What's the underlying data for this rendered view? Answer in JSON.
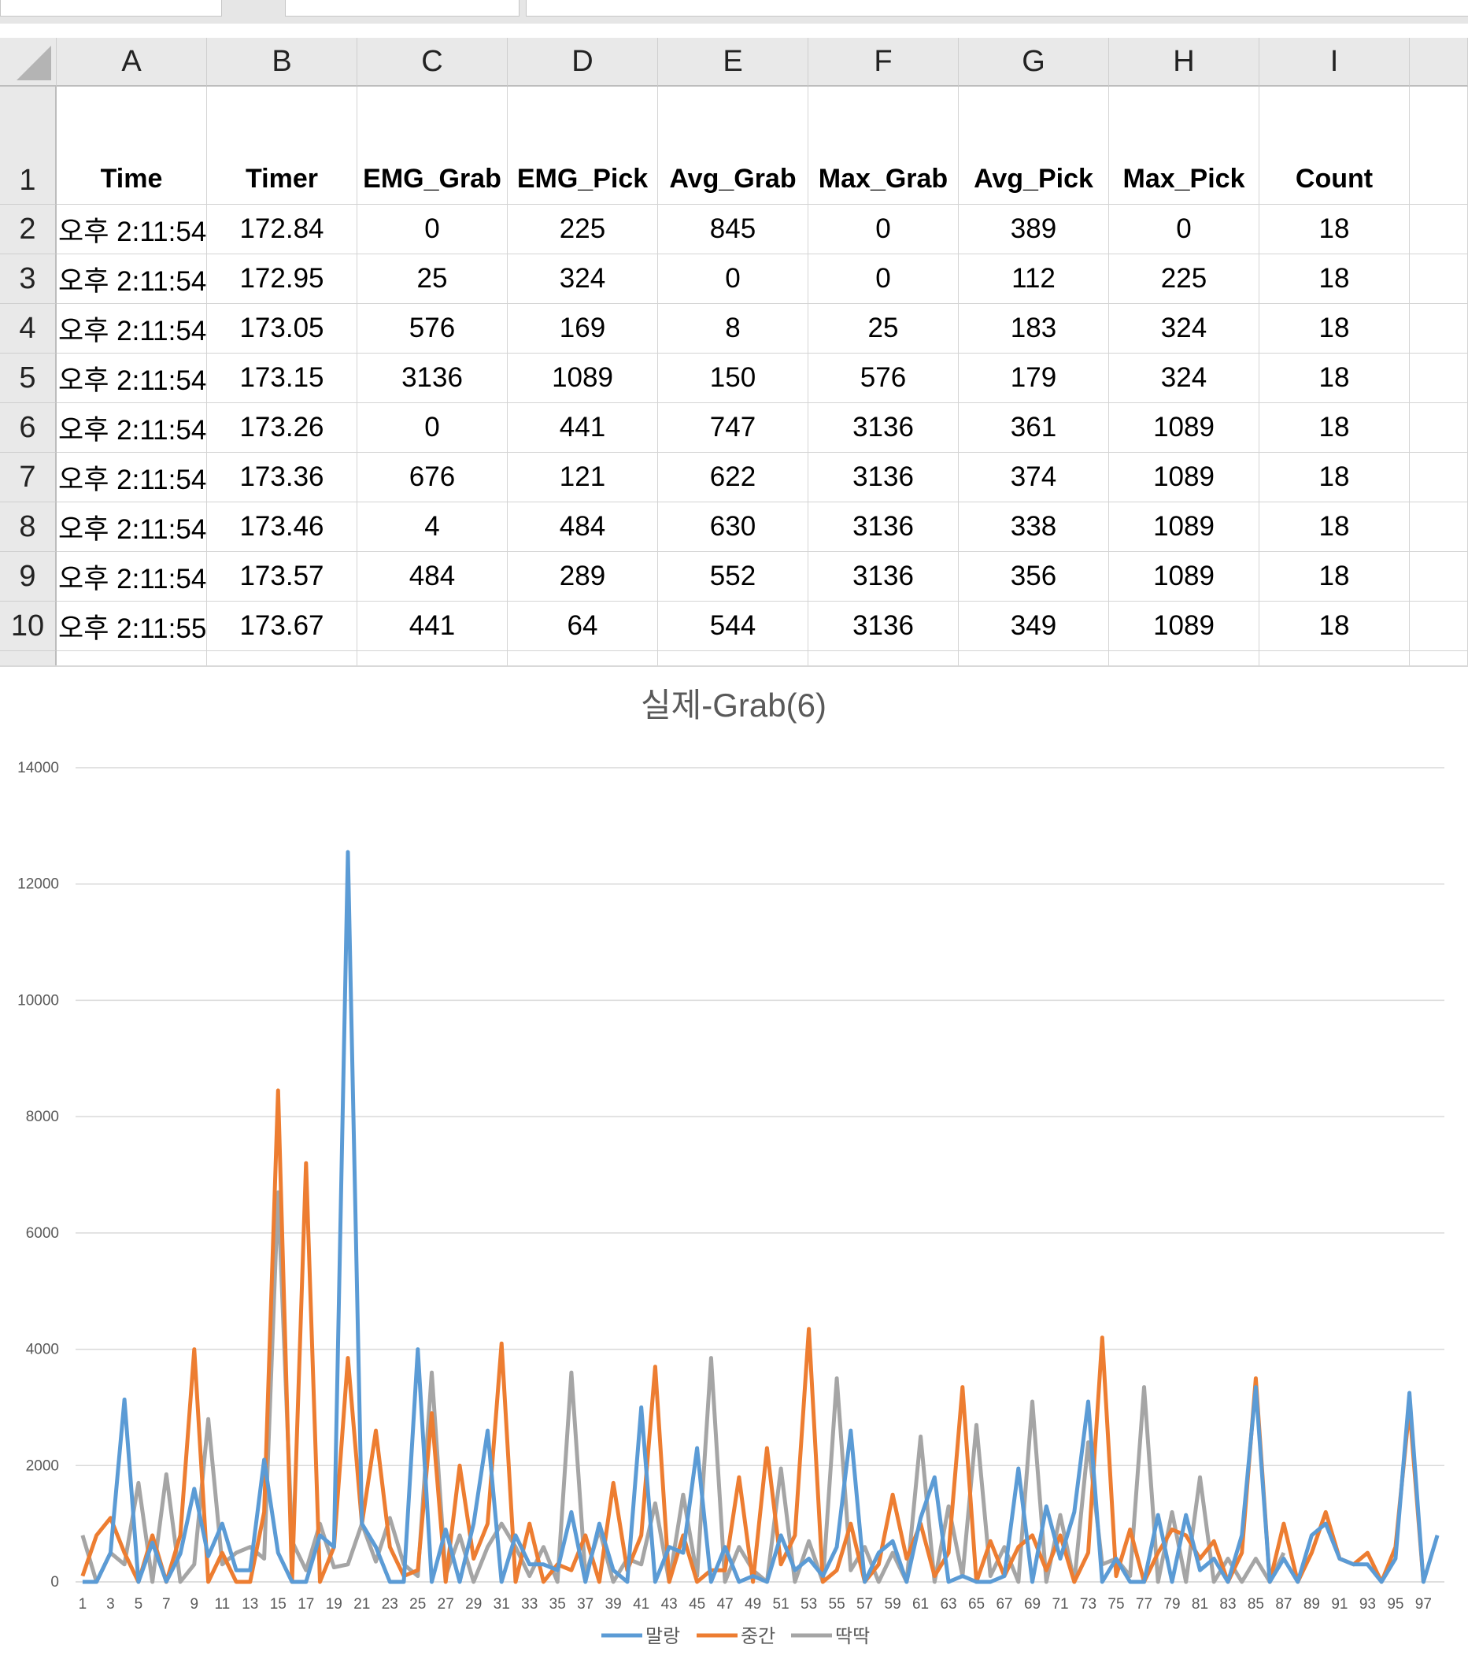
{
  "spreadsheet": {
    "column_letters": [
      "A",
      "B",
      "C",
      "D",
      "E",
      "F",
      "G",
      "H",
      "I"
    ],
    "headers": [
      "Time",
      "Timer",
      "EMG_Grab",
      "EMG_Pick",
      "Avg_Grab",
      "Max_Grab",
      "Avg_Pick",
      "Max_Pick",
      "Count"
    ],
    "rows": [
      {
        "n": "2",
        "cells": [
          "오후 2:11:54",
          "172.84",
          "0",
          "225",
          "845",
          "0",
          "389",
          "0",
          "18"
        ]
      },
      {
        "n": "3",
        "cells": [
          "오후 2:11:54",
          "172.95",
          "25",
          "324",
          "0",
          "0",
          "112",
          "225",
          "18"
        ]
      },
      {
        "n": "4",
        "cells": [
          "오후 2:11:54",
          "173.05",
          "576",
          "169",
          "8",
          "25",
          "183",
          "324",
          "18"
        ]
      },
      {
        "n": "5",
        "cells": [
          "오후 2:11:54",
          "173.15",
          "3136",
          "1089",
          "150",
          "576",
          "179",
          "324",
          "18"
        ]
      },
      {
        "n": "6",
        "cells": [
          "오후 2:11:54",
          "173.26",
          "0",
          "441",
          "747",
          "3136",
          "361",
          "1089",
          "18"
        ]
      },
      {
        "n": "7",
        "cells": [
          "오후 2:11:54",
          "173.36",
          "676",
          "121",
          "622",
          "3136",
          "374",
          "1089",
          "18"
        ]
      },
      {
        "n": "8",
        "cells": [
          "오후 2:11:54",
          "173.46",
          "4",
          "484",
          "630",
          "3136",
          "338",
          "1089",
          "18"
        ]
      },
      {
        "n": "9",
        "cells": [
          "오후 2:11:54",
          "173.57",
          "484",
          "289",
          "552",
          "3136",
          "356",
          "1089",
          "18"
        ]
      },
      {
        "n": "10",
        "cells": [
          "오후 2:11:55",
          "173.67",
          "441",
          "64",
          "544",
          "3136",
          "349",
          "1089",
          "18"
        ]
      }
    ]
  },
  "chart_data": {
    "type": "line",
    "title": "실제-Grab(6)",
    "xlabel": "",
    "ylabel": "",
    "ylim": [
      0,
      14000
    ],
    "yticks": [
      0,
      2000,
      4000,
      6000,
      8000,
      10000,
      12000,
      14000
    ],
    "x_tick_labels": [
      "1",
      "3",
      "5",
      "7",
      "9",
      "11",
      "13",
      "15",
      "17",
      "19",
      "21",
      "23",
      "25",
      "27",
      "29",
      "31",
      "33",
      "35",
      "37",
      "39",
      "41",
      "43",
      "45",
      "47",
      "49",
      "51",
      "53",
      "55",
      "57",
      "59",
      "61",
      "63",
      "65",
      "67",
      "69",
      "71",
      "73",
      "75",
      "77",
      "79",
      "81",
      "83",
      "85",
      "87",
      "89",
      "91",
      "93",
      "95",
      "97"
    ],
    "grid": true,
    "legend_position": "bottom",
    "series": [
      {
        "name": "말랑",
        "color": "#5B9BD5",
        "values": [
          0,
          0,
          500,
          3136,
          0,
          676,
          4,
          484,
          1600,
          441,
          1000,
          200,
          200,
          2100,
          500,
          0,
          0,
          800,
          600,
          12550,
          1000,
          600,
          0,
          0,
          4000,
          0,
          900,
          0,
          1000,
          2600,
          0,
          800,
          300,
          300,
          200,
          1200,
          0,
          1000,
          200,
          0,
          3000,
          0,
          600,
          500,
          2300,
          0,
          600,
          0,
          100,
          0,
          800,
          200,
          400,
          100,
          600,
          2600,
          0,
          500,
          700,
          0,
          1100,
          1800,
          0,
          100,
          0,
          0,
          100,
          1950,
          0,
          1300,
          400,
          1200,
          3100,
          0,
          400,
          0,
          0,
          1150,
          0,
          1150,
          200,
          400,
          0,
          800,
          3350,
          0,
          400,
          0,
          800,
          1000,
          400,
          300,
          300,
          0,
          400,
          3250,
          0,
          800
        ]
      },
      {
        "name": "중간",
        "color": "#ED7D31",
        "values": [
          100,
          800,
          1100,
          500,
          0,
          800,
          0,
          800,
          4000,
          0,
          500,
          0,
          0,
          1200,
          8450,
          0,
          7200,
          0,
          600,
          3850,
          1000,
          2600,
          600,
          100,
          200,
          2900,
          0,
          2000,
          400,
          1000,
          4100,
          0,
          1000,
          0,
          300,
          200,
          800,
          0,
          1700,
          200,
          800,
          3700,
          0,
          800,
          0,
          200,
          200,
          1800,
          0,
          2300,
          300,
          800,
          4350,
          0,
          200,
          1000,
          0,
          300,
          1500,
          400,
          1000,
          100,
          500,
          3350,
          0,
          700,
          100,
          600,
          800,
          200,
          800,
          0,
          500,
          4200,
          100,
          900,
          0,
          500,
          900,
          800,
          400,
          700,
          0,
          500,
          3500,
          0,
          1000,
          0,
          500,
          1200,
          400,
          300,
          500,
          0,
          600,
          3000,
          0
        ]
      },
      {
        "name": "딱딱",
        "color": "#A5A5A5",
        "values": [
          800,
          0,
          500,
          300,
          1700,
          0,
          1850,
          0,
          300,
          2800,
          300,
          500,
          600,
          400,
          6700,
          700,
          200,
          1000,
          250,
          300,
          1000,
          350,
          1100,
          300,
          100,
          3600,
          100,
          800,
          0,
          600,
          1000,
          600,
          100,
          600,
          0,
          3600,
          100,
          900,
          0,
          400,
          300,
          1350,
          0,
          1500,
          100,
          3850,
          0,
          600,
          200,
          0,
          1950,
          0,
          700,
          0,
          3500,
          200,
          600,
          0,
          500,
          0,
          2500,
          0,
          1300,
          100,
          2700,
          100,
          600,
          0,
          3100,
          0,
          1150,
          0,
          2400,
          300,
          400,
          100,
          3350,
          0,
          1200,
          0,
          1800,
          0,
          400,
          0,
          400,
          0,
          500
        ]
      }
    ],
    "legend_entries": [
      "말랑",
      "중간",
      "딱딱"
    ]
  }
}
